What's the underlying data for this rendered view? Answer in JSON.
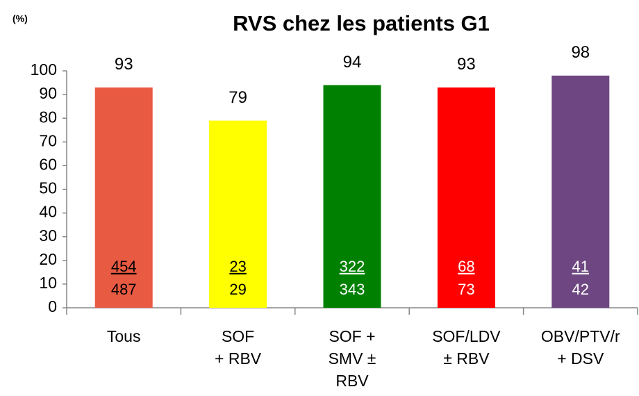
{
  "chart_data": {
    "type": "bar",
    "title": "RVS chez les patients G1",
    "y_label": "(%)",
    "categories": [
      [
        "Tous"
      ],
      [
        "SOF",
        "+ RBV"
      ],
      [
        "SOF +",
        "SMV ±",
        "RBV"
      ],
      [
        "SOF/LDV",
        "± RBV"
      ],
      [
        "OBV/PTV/r",
        "+ DSV"
      ]
    ],
    "values": [
      93,
      79,
      94,
      93,
      98
    ],
    "colors": [
      "#e95a42",
      "#ffff00",
      "#008000",
      "#ff0000",
      "#6e4782"
    ],
    "responders": [
      454,
      23,
      322,
      68,
      41
    ],
    "totals": [
      487,
      29,
      343,
      73,
      42
    ],
    "inner_label_colors": [
      "#000000",
      "#000000",
      "#ffffff",
      "#ffffff",
      "#ffffff"
    ],
    "ylim": [
      0,
      100
    ],
    "yticks": [
      0,
      10,
      20,
      30,
      40,
      50,
      60,
      70,
      80,
      90,
      100
    ],
    "grid": false
  }
}
